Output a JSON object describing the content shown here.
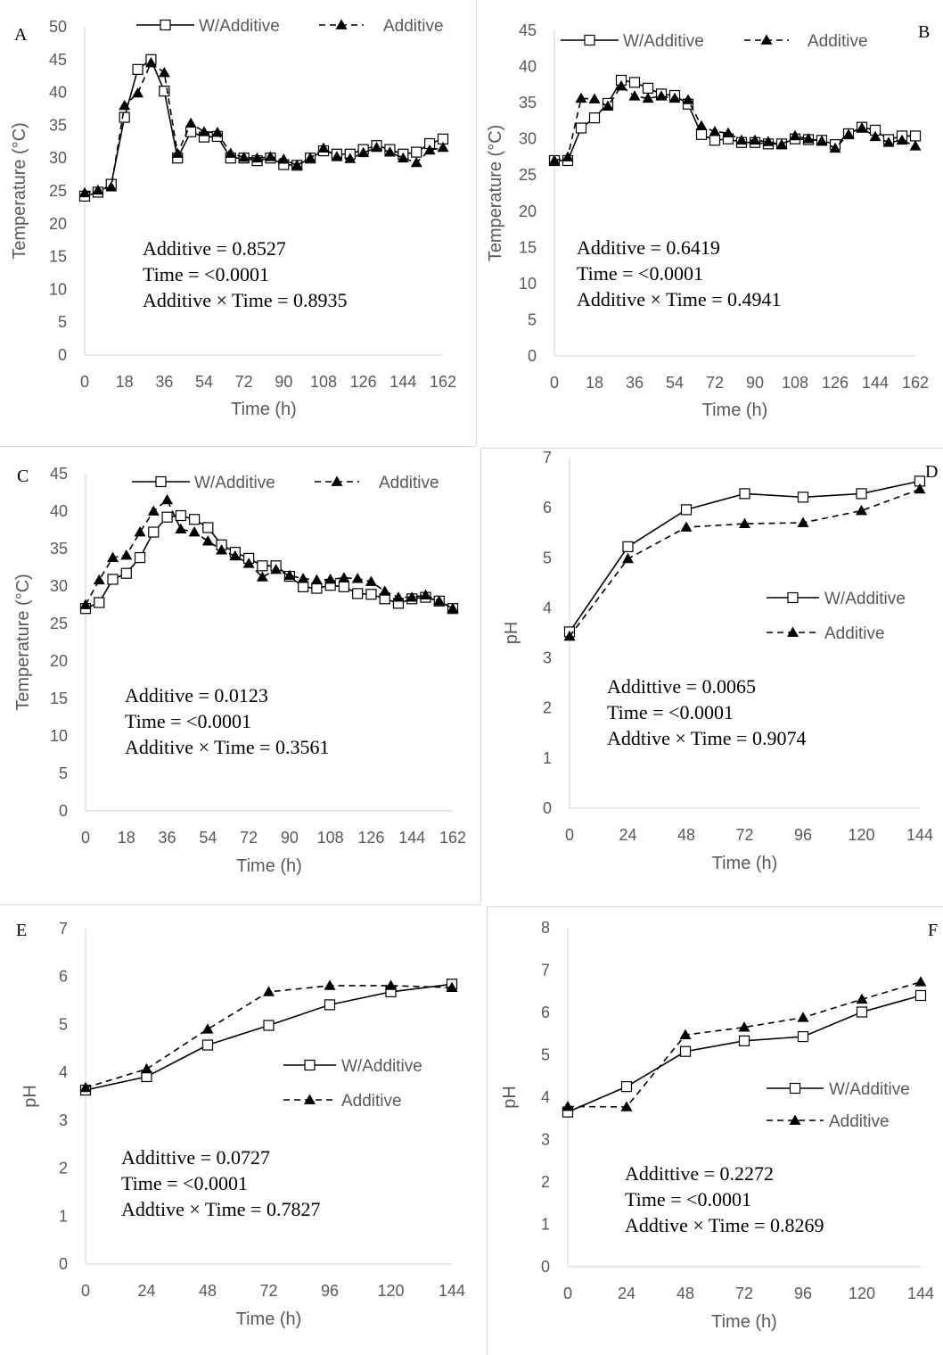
{
  "chart_data": [
    {
      "id": "A",
      "type": "line",
      "panel_label": "A",
      "xlabel": "Time (h)",
      "ylabel": "Temperature (°C)",
      "xlim": [
        0,
        162
      ],
      "ylim": [
        0,
        50
      ],
      "xticks": [
        0,
        18,
        36,
        54,
        72,
        90,
        108,
        126,
        144,
        162
      ],
      "yticks": [
        0,
        5,
        10,
        15,
        20,
        25,
        30,
        35,
        40,
        45,
        50
      ],
      "legend": "top",
      "series": [
        {
          "name": "W/Additive",
          "style": "solid",
          "marker": "square",
          "x": [
            0,
            6,
            12,
            18,
            24,
            30,
            36,
            42,
            48,
            54,
            60,
            66,
            72,
            78,
            84,
            90,
            96,
            102,
            108,
            114,
            120,
            126,
            132,
            138,
            144,
            150,
            156,
            162
          ],
          "y": [
            24.2,
            24.8,
            26,
            36.2,
            43.5,
            45,
            40.2,
            30,
            34,
            33.2,
            33.3,
            30,
            30,
            29.6,
            30,
            29,
            28.9,
            30,
            31.1,
            30.6,
            30.6,
            31.3,
            31.9,
            31.3,
            30.6,
            30.9,
            32.2,
            32.9
          ]
        },
        {
          "name": "Additive",
          "style": "dashed",
          "marker": "triangle",
          "x": [
            0,
            6,
            12,
            18,
            24,
            30,
            36,
            42,
            48,
            54,
            60,
            66,
            72,
            78,
            84,
            90,
            96,
            102,
            108,
            114,
            120,
            126,
            132,
            138,
            144,
            150,
            156,
            162
          ],
          "y": [
            24.7,
            25.1,
            25.6,
            38,
            39.9,
            44.5,
            43,
            30.7,
            35.3,
            34,
            33.9,
            30.7,
            30.1,
            30,
            30.2,
            29.8,
            28.9,
            30,
            31.5,
            30.2,
            29.9,
            30.8,
            31.6,
            30.9,
            30,
            29.3,
            31.2,
            31.6
          ]
        }
      ],
      "stats": [
        "Additive = 0.8527",
        "Time = <0.0001",
        "Additive × Time = 0.8935"
      ]
    },
    {
      "id": "B",
      "type": "line",
      "panel_label": "B",
      "xlabel": "Time (h)",
      "ylabel": "Temperature (°C)",
      "xlim": [
        0,
        162
      ],
      "ylim": [
        0,
        45
      ],
      "xticks": [
        0,
        18,
        36,
        54,
        72,
        90,
        108,
        126,
        144,
        162
      ],
      "yticks": [
        0,
        5,
        10,
        15,
        20,
        25,
        30,
        35,
        40,
        45
      ],
      "legend": "top",
      "series": [
        {
          "name": "W/Additive",
          "style": "solid",
          "marker": "square",
          "x": [
            0,
            6,
            12,
            18,
            24,
            30,
            36,
            42,
            48,
            54,
            60,
            66,
            72,
            78,
            84,
            90,
            96,
            102,
            108,
            114,
            120,
            126,
            132,
            138,
            144,
            150,
            156,
            162
          ],
          "y": [
            27,
            27,
            31.5,
            32.9,
            34.9,
            38.1,
            37.8,
            37,
            36.2,
            36,
            34.8,
            30.6,
            29.8,
            30,
            29.5,
            29.5,
            29.3,
            29.3,
            30,
            29.9,
            29.8,
            29.2,
            30.7,
            31.6,
            31.2,
            29.9,
            30.4,
            30.4
          ]
        },
        {
          "name": "Additive",
          "style": "dashed",
          "marker": "triangle",
          "x": [
            0,
            6,
            12,
            18,
            24,
            30,
            36,
            42,
            48,
            54,
            60,
            66,
            72,
            78,
            84,
            90,
            96,
            102,
            108,
            114,
            120,
            126,
            132,
            138,
            144,
            150,
            156,
            162
          ],
          "y": [
            27,
            27.5,
            35.6,
            35.5,
            34.5,
            37.3,
            35.9,
            35.6,
            35.9,
            35.6,
            35.4,
            31.8,
            31,
            30.8,
            29.8,
            29.8,
            29.6,
            29.2,
            30.4,
            30,
            29.7,
            28.7,
            30.6,
            31.5,
            30.3,
            29.5,
            29.8,
            29
          ]
        }
      ],
      "stats": [
        "Additive = 0.6419",
        "Time = <0.0001",
        "Additive × Time = 0.4941"
      ]
    },
    {
      "id": "C",
      "type": "line",
      "panel_label": "C",
      "xlabel": "Time (h)",
      "ylabel": "Temperature (°C)",
      "xlim": [
        0,
        162
      ],
      "ylim": [
        0,
        45
      ],
      "xticks": [
        0,
        18,
        36,
        54,
        72,
        90,
        108,
        126,
        144,
        162
      ],
      "yticks": [
        0,
        5,
        10,
        15,
        20,
        25,
        30,
        35,
        40,
        45
      ],
      "legend": "top",
      "series": [
        {
          "name": "W/Additive",
          "style": "solid",
          "marker": "square",
          "x": [
            0,
            6,
            12,
            18,
            24,
            30,
            36,
            42,
            48,
            54,
            60,
            66,
            72,
            78,
            84,
            90,
            96,
            102,
            108,
            114,
            120,
            126,
            132,
            138,
            144,
            150,
            156,
            162
          ],
          "y": [
            27,
            27.8,
            30.9,
            31.7,
            33.8,
            37.2,
            39.2,
            39.4,
            38.9,
            37.8,
            35.5,
            34.5,
            33.7,
            32.7,
            32.7,
            31.3,
            29.9,
            29.7,
            30.1,
            29.9,
            29,
            28.9,
            28.3,
            27.7,
            28.3,
            28.5,
            28,
            27
          ]
        },
        {
          "name": "Additive",
          "style": "dashed",
          "marker": "triangle",
          "x": [
            0,
            6,
            12,
            18,
            24,
            30,
            36,
            42,
            48,
            54,
            60,
            66,
            72,
            78,
            84,
            90,
            96,
            102,
            108,
            114,
            120,
            126,
            132,
            138,
            144,
            150,
            156,
            162
          ],
          "y": [
            27.5,
            30.8,
            33.8,
            34.1,
            37.2,
            40,
            41.5,
            37.6,
            37.2,
            36,
            34.8,
            34,
            33,
            31.2,
            32.2,
            31.4,
            31,
            30.8,
            30.9,
            31.1,
            31,
            30.6,
            29.3,
            28.5,
            28.5,
            28.8,
            28,
            27
          ]
        }
      ],
      "stats": [
        "Additive = 0.0123",
        "Time = <0.0001",
        "Additive × Time =  0.3561"
      ]
    },
    {
      "id": "D",
      "type": "line",
      "panel_label": "D",
      "xlabel": "Time (h)",
      "ylabel": "pH",
      "xlim": [
        0,
        144
      ],
      "ylim": [
        0,
        7
      ],
      "xticks": [
        0,
        24,
        48,
        72,
        96,
        120,
        144
      ],
      "yticks": [
        0,
        1,
        2,
        3,
        4,
        5,
        6,
        7
      ],
      "legend": "right",
      "series": [
        {
          "name": "W/Additive",
          "style": "solid",
          "marker": "square",
          "x": [
            0,
            24,
            48,
            72,
            96,
            120,
            144
          ],
          "y": [
            3.52,
            5.22,
            5.96,
            6.28,
            6.21,
            6.28,
            6.53
          ]
        },
        {
          "name": "Additive",
          "style": "dashed",
          "marker": "triangle",
          "x": [
            0,
            24,
            48,
            72,
            96,
            120,
            144
          ],
          "y": [
            3.43,
            4.98,
            5.61,
            5.68,
            5.7,
            5.94,
            6.37
          ]
        }
      ],
      "stats": [
        "Addittive = 0.0065",
        "Time = <0.0001",
        "Addtive × Time = 0.9074"
      ]
    },
    {
      "id": "E",
      "type": "line",
      "panel_label": "E",
      "xlabel": "Time (h)",
      "ylabel": "pH",
      "xlim": [
        0,
        144
      ],
      "ylim": [
        0,
        7
      ],
      "xticks": [
        0,
        24,
        48,
        72,
        96,
        120,
        144
      ],
      "yticks": [
        0,
        1,
        2,
        3,
        4,
        5,
        6,
        7
      ],
      "legend": "right",
      "series": [
        {
          "name": "W/Additive",
          "style": "solid",
          "marker": "square",
          "x": [
            0,
            24,
            48,
            72,
            96,
            120,
            144
          ],
          "y": [
            3.63,
            3.91,
            4.57,
            4.98,
            5.41,
            5.68,
            5.84
          ]
        },
        {
          "name": "Additive",
          "style": "dashed",
          "marker": "triangle",
          "x": [
            0,
            24,
            48,
            72,
            96,
            120,
            144
          ],
          "y": [
            3.68,
            4.07,
            4.9,
            5.68,
            5.81,
            5.81,
            5.77
          ]
        }
      ],
      "stats": [
        "Addittive = 0.0727",
        "Time = <0.0001",
        "Addtive × Time = 0.7827"
      ]
    },
    {
      "id": "F",
      "type": "line",
      "panel_label": "F",
      "xlabel": "Time (h)",
      "ylabel": "pH",
      "xlim": [
        0,
        144
      ],
      "ylim": [
        0,
        8
      ],
      "xticks": [
        0,
        24,
        48,
        72,
        96,
        120,
        144
      ],
      "yticks": [
        0,
        1,
        2,
        3,
        4,
        5,
        6,
        7,
        8
      ],
      "legend": "right",
      "series": [
        {
          "name": "W/Additive",
          "style": "solid",
          "marker": "square",
          "x": [
            0,
            24,
            48,
            72,
            96,
            120,
            144
          ],
          "y": [
            3.65,
            4.25,
            5.08,
            5.33,
            5.43,
            6.01,
            6.4
          ]
        },
        {
          "name": "Additive",
          "style": "dashed",
          "marker": "triangle",
          "x": [
            0,
            24,
            48,
            72,
            96,
            120,
            144
          ],
          "y": [
            3.78,
            3.77,
            5.47,
            5.65,
            5.88,
            6.31,
            6.72
          ]
        }
      ],
      "stats": [
        "Addittive = 0.2272",
        "Time = <0.0001",
        "Addtive × Time = 0.8269"
      ]
    }
  ]
}
